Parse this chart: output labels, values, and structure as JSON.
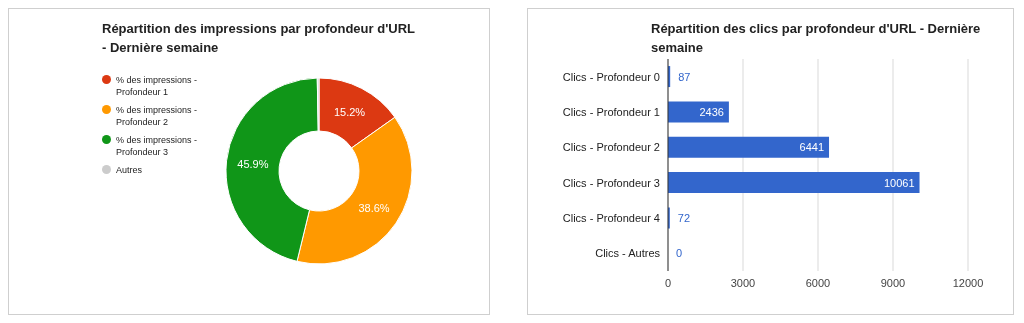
{
  "chart_data": [
    {
      "type": "donut",
      "title": "Répartition des impressions par profondeur d'URL - Dernière semaine",
      "categories": [
        "% des impressions - Profondeur 1",
        "% des impressions - Profondeur 2",
        "% des impressions - Profondeur 3",
        "Autres"
      ],
      "values": [
        15.2,
        38.6,
        45.9,
        0.3
      ],
      "colors": [
        "#dc3912",
        "#ff9900",
        "#109618",
        "#cccccc"
      ],
      "value_labels": [
        "15.2%",
        "38.6%",
        "45.9%",
        null
      ],
      "legend": "left"
    },
    {
      "type": "bar",
      "orientation": "horizontal",
      "title": "Répartition des clics par profondeur d'URL - Dernière semaine",
      "categories": [
        "Clics - Profondeur 0",
        "Clics - Profondeur 1",
        "Clics - Profondeur 2",
        "Clics - Profondeur 3",
        "Clics - Profondeur 4",
        "Clics - Autres"
      ],
      "values": [
        87,
        2436,
        6441,
        10061,
        72,
        0
      ],
      "color": "#3366cc",
      "xlim": [
        0,
        12000
      ],
      "xticks": [
        0,
        3000,
        6000,
        9000,
        12000
      ],
      "grid": "x",
      "data_labels": true
    }
  ]
}
